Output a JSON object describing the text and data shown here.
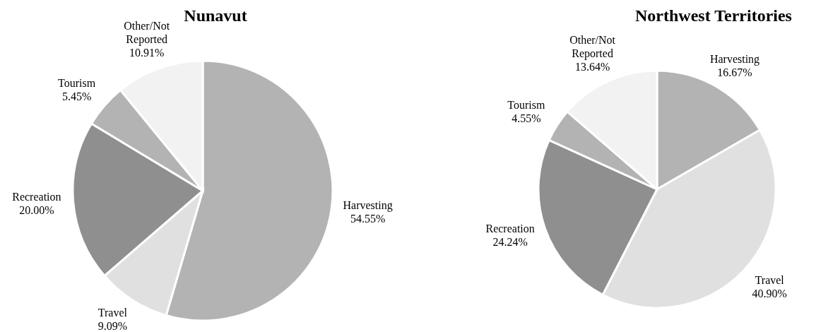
{
  "chart_data": [
    {
      "type": "pie",
      "title": "Nunavut",
      "categories": [
        "Harvesting",
        "Travel",
        "Recreation",
        "Tourism",
        "Other/Not Reported"
      ],
      "values": [
        54.55,
        9.09,
        20.0,
        5.45,
        10.91
      ],
      "value_labels": [
        "54.55%",
        "9.09%",
        "20.00%",
        "5.45%",
        "10.91%"
      ],
      "colors": [
        "#b3b3b3",
        "#e0e0e0",
        "#8f8f8f",
        "#b3b3b3",
        "#f2f2f2"
      ],
      "legend": false
    },
    {
      "type": "pie",
      "title": "Northwest Territories",
      "categories": [
        "Harvesting",
        "Travel",
        "Recreation",
        "Tourism",
        "Other/Not Reported"
      ],
      "values": [
        16.67,
        40.9,
        24.24,
        4.55,
        13.64
      ],
      "value_labels": [
        "16.67%",
        "40.90%",
        "24.24%",
        "4.55%",
        "13.64%"
      ],
      "colors": [
        "#b3b3b3",
        "#e0e0e0",
        "#8f8f8f",
        "#b3b3b3",
        "#f2f2f2"
      ],
      "legend": false
    }
  ]
}
